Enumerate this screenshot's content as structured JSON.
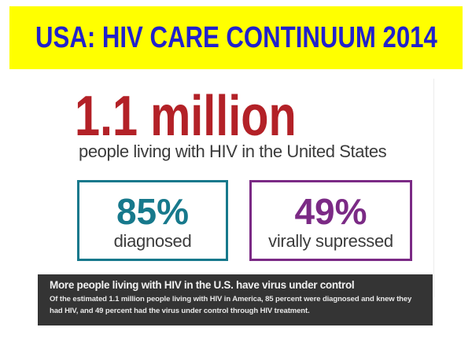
{
  "banner": {
    "title": "USA: HIV CARE CONTINUUM 2014",
    "background": "#FFFF00",
    "text_color": "#2121CC"
  },
  "headline": {
    "value": "1.1 million",
    "color": "#B32127",
    "subtitle": "people living with HIV in the United States",
    "subtitle_color": "#3B3B3B"
  },
  "stats": [
    {
      "value": "85%",
      "label": "diagnosed",
      "color": "#17798C"
    },
    {
      "value": "49%",
      "label": "virally supressed",
      "color": "#7B2A85"
    }
  ],
  "footer": {
    "heading": "More people living with HIV in the U.S. have virus under control",
    "body": "Of the estimated 1.1 million people living with HIV in America, 85 percent were diagnosed and knew they had HIV, and 49 percent had the virus under control through HIV treatment.",
    "background": "#343434",
    "heading_color": "#F2F2F2",
    "body_color": "#E8E8E8"
  },
  "chart_data": {
    "type": "table",
    "title": "USA: HIV CARE CONTINUUM 2014",
    "total": {
      "value": 1100000,
      "display": "1.1 million",
      "label": "people living with HIV in the United States"
    },
    "categories": [
      "diagnosed",
      "virally supressed"
    ],
    "values": [
      85,
      49
    ],
    "unit": "percent",
    "annotations": [
      "More people living with HIV in the U.S. have virus under control",
      "Of the estimated 1.1 million people living with HIV in America, 85 percent were diagnosed and knew they had HIV, and 49 percent had the virus under control through HIV treatment."
    ]
  }
}
